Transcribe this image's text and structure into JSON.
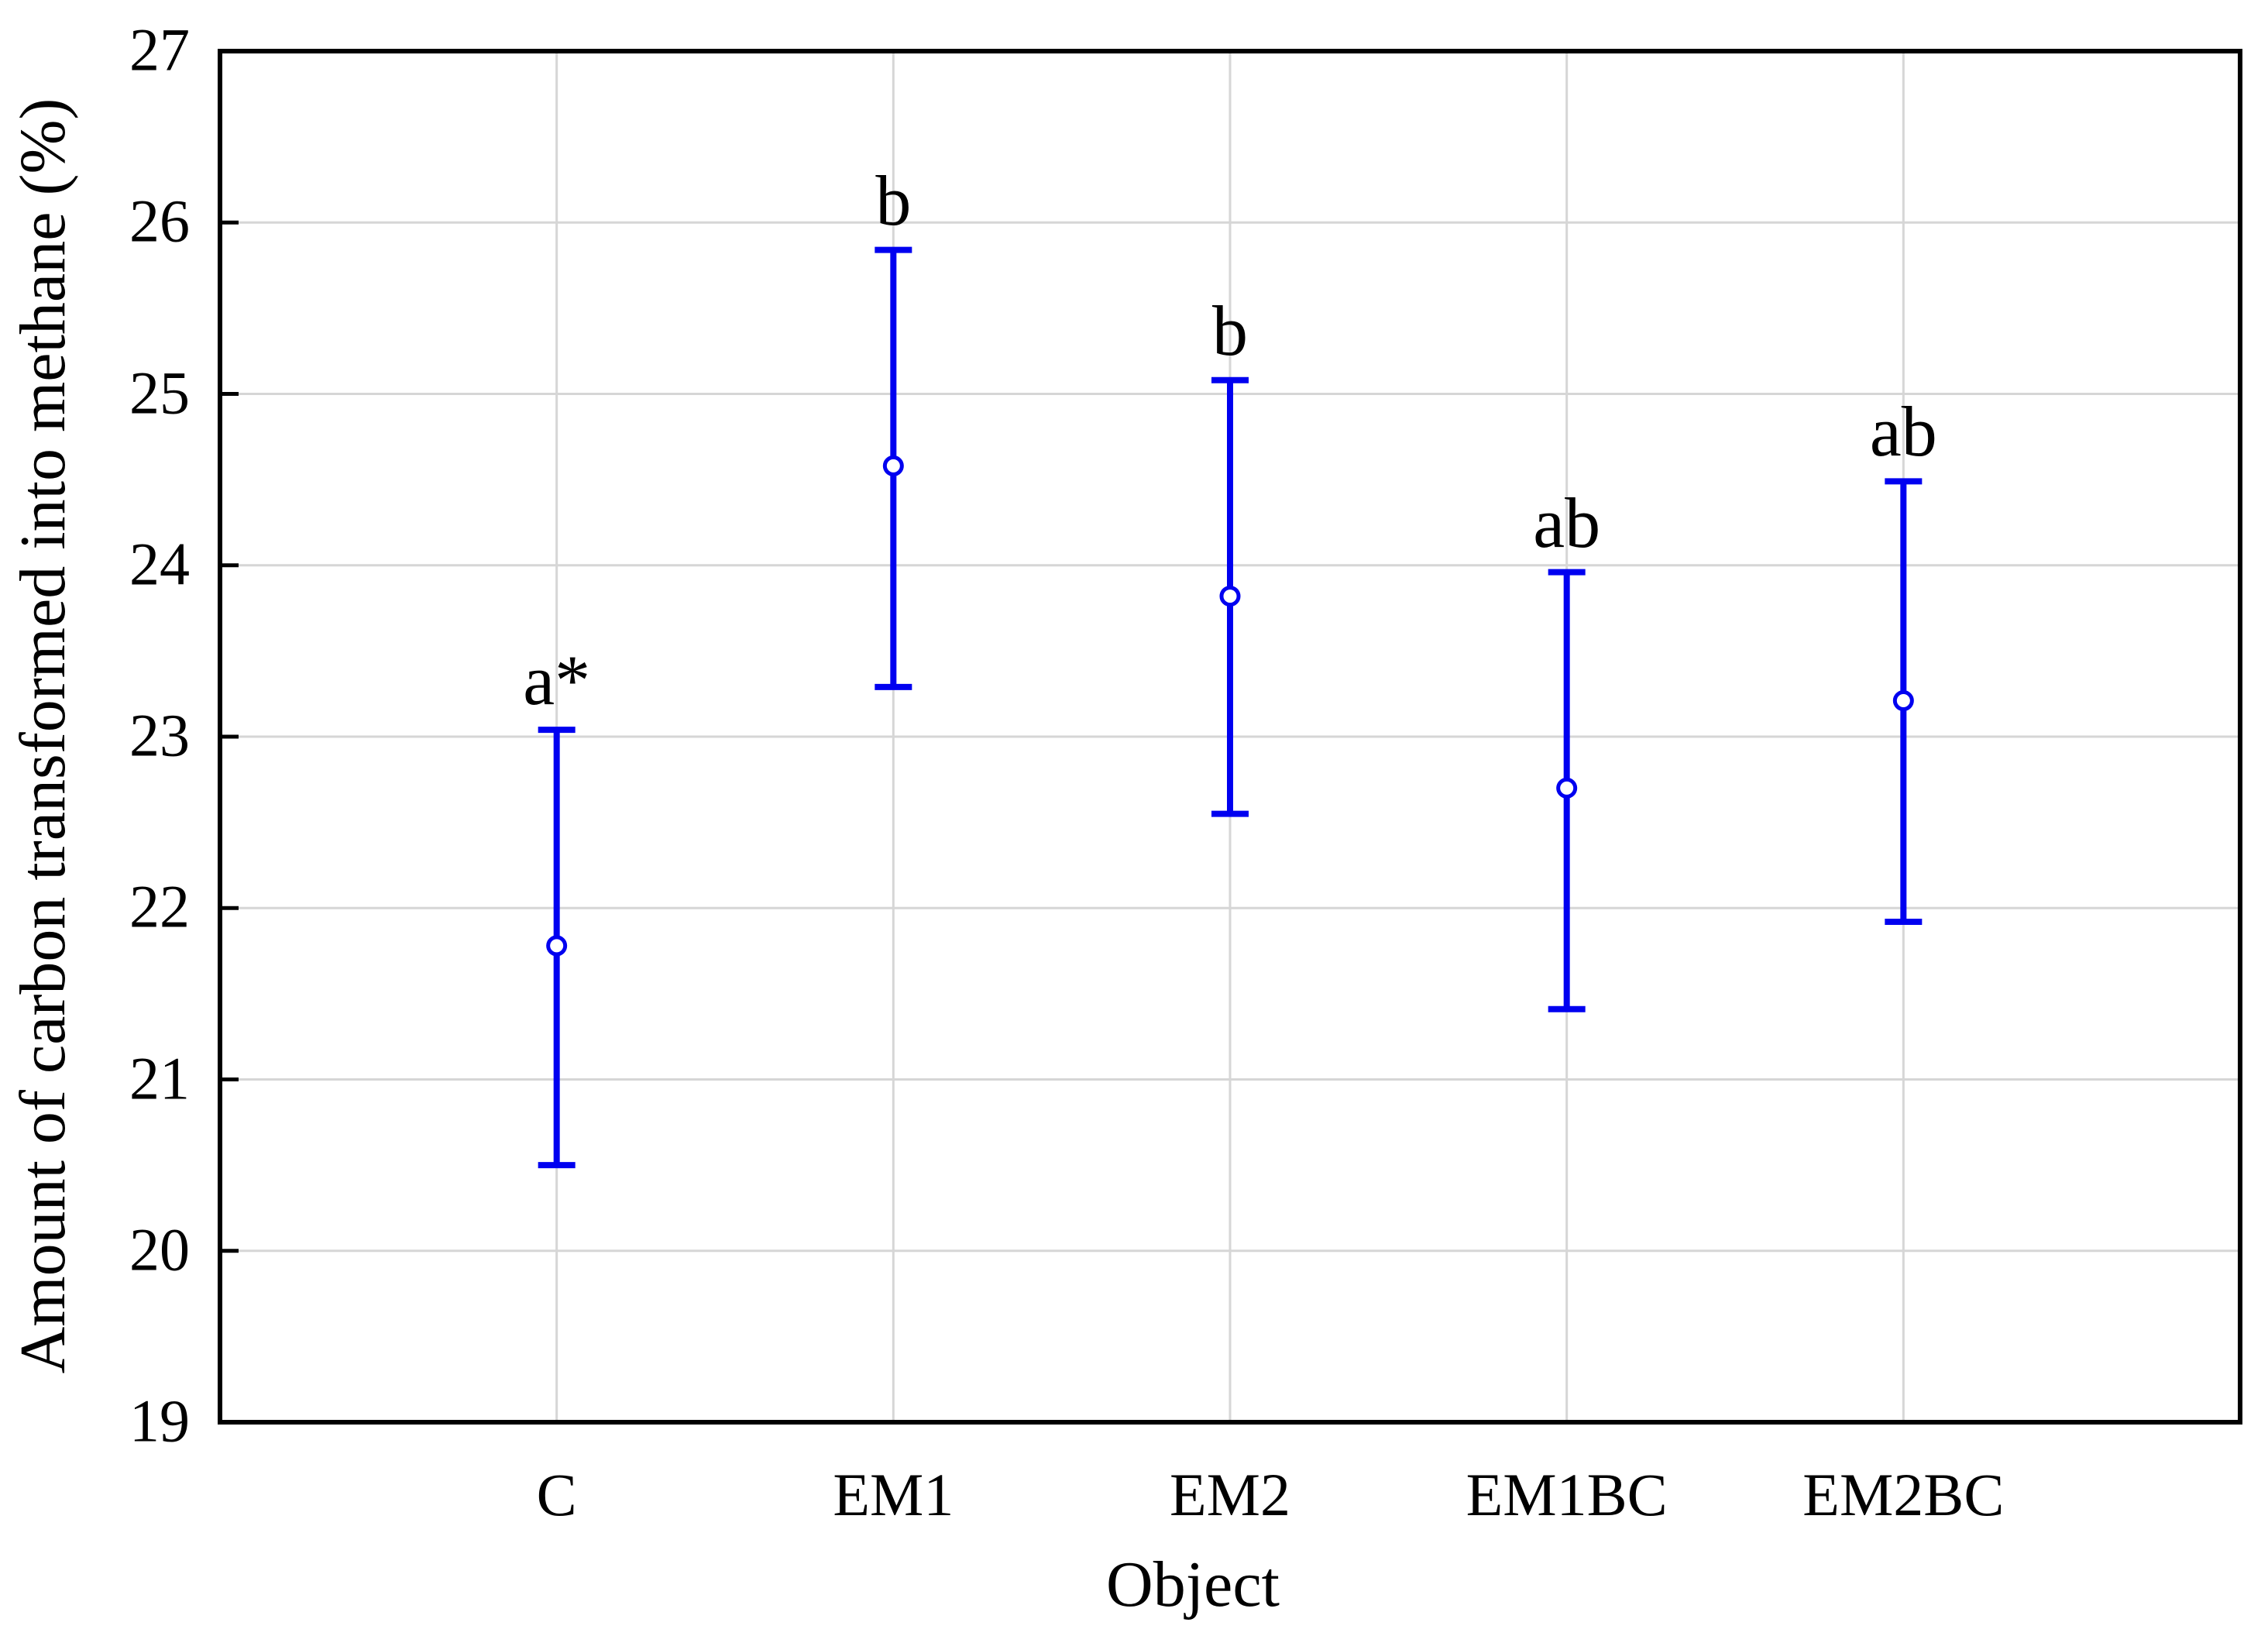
{
  "chart_data": {
    "type": "scatter",
    "subtype": "mean-with-error-bars",
    "title": "",
    "xlabel": "Object",
    "ylabel": "Amount of carbon transformed into methane (%)",
    "ylim": [
      19,
      27
    ],
    "yticks": [
      27,
      26,
      25,
      24,
      23,
      22,
      21,
      20,
      19
    ],
    "categories": [
      "C",
      "EM1",
      "EM2",
      "EM1BC",
      "EM2BC"
    ],
    "points": [
      {
        "category": "C",
        "mean": 21.78,
        "lower": 20.5,
        "upper": 23.04,
        "letter": "a*"
      },
      {
        "category": "EM1",
        "mean": 24.58,
        "lower": 23.29,
        "upper": 25.84,
        "letter": "b"
      },
      {
        "category": "EM2",
        "mean": 23.82,
        "lower": 22.55,
        "upper": 25.08,
        "letter": "b"
      },
      {
        "category": "EM1BC",
        "mean": 22.7,
        "lower": 21.41,
        "upper": 23.96,
        "letter": "ab"
      },
      {
        "category": "EM2BC",
        "mean": 23.21,
        "lower": 21.92,
        "upper": 24.49,
        "letter": "ab"
      }
    ],
    "marker": "open-circle",
    "grid": {
      "horizontal": true,
      "vertical": true
    },
    "legend": {
      "visible": false
    },
    "colors": {
      "error_bar": "#0000f0",
      "grid": "#d6d6d6",
      "frame": "#000000",
      "text": "#000000",
      "background": "#ffffff"
    }
  }
}
